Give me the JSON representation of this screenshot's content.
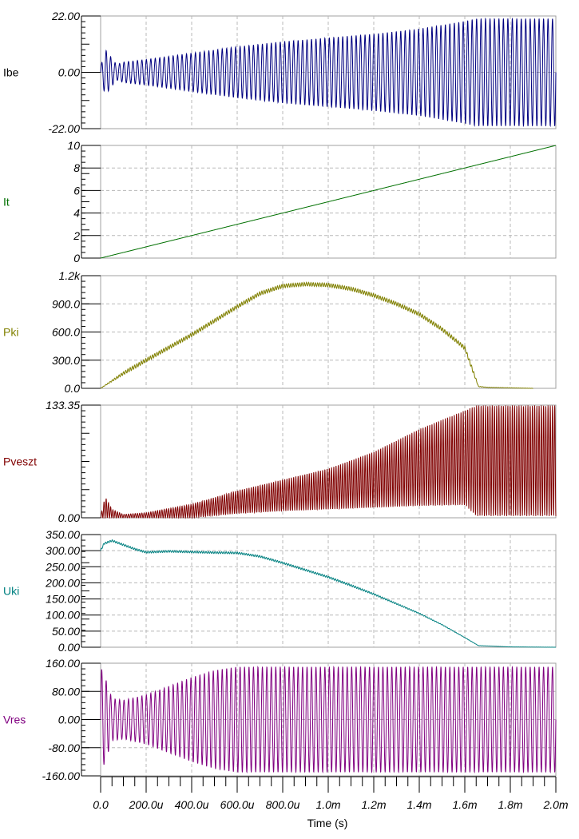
{
  "chart_data": {
    "type": "line",
    "xlabel": "Time (s)",
    "xlim": [
      0,
      0.002
    ],
    "x_ticks": [
      {
        "value": 0,
        "label": "0.0"
      },
      {
        "value": 0.0002,
        "label": "200.0u"
      },
      {
        "value": 0.0004,
        "label": "400.0u"
      },
      {
        "value": 0.0006,
        "label": "600.0u"
      },
      {
        "value": 0.0008,
        "label": "800.0u"
      },
      {
        "value": 0.001,
        "label": "1.0m"
      },
      {
        "value": 0.0012,
        "label": "1.2m"
      },
      {
        "value": 0.0014,
        "label": "1.4m"
      },
      {
        "value": 0.0016,
        "label": "1.6m"
      },
      {
        "value": 0.0018,
        "label": "1.8m"
      },
      {
        "value": 0.002,
        "label": "2.0m"
      }
    ],
    "grid": true,
    "panels": [
      {
        "name": "Ibe",
        "color": "#000000",
        "line_color": "#000080",
        "ylim": [
          -22,
          22
        ],
        "y_ticks": [
          {
            "value": 22,
            "label": "22.00"
          },
          {
            "value": 0,
            "label": "0.00"
          },
          {
            "value": -22,
            "label": "-22.00"
          }
        ],
        "kind": "oscillation",
        "envelope_t": [
          0,
          2e-05,
          7e-05,
          0.0001,
          0.0002,
          0.0004,
          0.0006,
          0.0008,
          0.001,
          0.0012,
          0.0014,
          0.0016,
          0.00165,
          0.002
        ],
        "envelope_amp": [
          2,
          9,
          3,
          4,
          5,
          7.5,
          10,
          12,
          13.5,
          15,
          17,
          20,
          21,
          21
        ],
        "offset": 0,
        "cycles": 102
      },
      {
        "name": "It",
        "color": "#007000",
        "line_color": "#007000",
        "ylim": [
          0,
          10
        ],
        "y_ticks": [
          {
            "value": 10,
            "label": "10"
          },
          {
            "value": 8,
            "label": "8"
          },
          {
            "value": 6,
            "label": "6"
          },
          {
            "value": 4,
            "label": "4"
          },
          {
            "value": 2,
            "label": "2"
          },
          {
            "value": 0,
            "label": "0"
          }
        ],
        "kind": "line",
        "x": [
          0,
          0.002
        ],
        "y": [
          0,
          10
        ]
      },
      {
        "name": "Pki",
        "color": "#808000",
        "line_color": "#808000",
        "ylim": [
          0,
          1200
        ],
        "y_ticks": [
          {
            "value": 1200,
            "label": "1.2k"
          },
          {
            "value": 900,
            "label": "900.0"
          },
          {
            "value": 600,
            "label": "600.0"
          },
          {
            "value": 300,
            "label": "300.0"
          },
          {
            "value": 0,
            "label": "0.0"
          }
        ],
        "kind": "line",
        "x": [
          0,
          0.0001,
          0.0002,
          0.0004,
          0.0006,
          0.0007,
          0.0008,
          0.0009,
          0.001,
          0.0011,
          0.0012,
          0.0013,
          0.0014,
          0.0015,
          0.0016,
          0.00166,
          0.0017,
          0.0018,
          0.0019
        ],
        "y": [
          0,
          160,
          300,
          570,
          870,
          1010,
          1090,
          1110,
          1100,
          1060,
          990,
          900,
          790,
          630,
          430,
          20,
          10,
          5,
          0
        ],
        "ripple": 20
      },
      {
        "name": "Pveszt",
        "color": "#800000",
        "line_color": "#800000",
        "ylim": [
          0,
          133.35
        ],
        "y_ticks": [
          {
            "value": 133.35,
            "label": "133.35"
          },
          {
            "value": 0,
            "label": "0.00"
          }
        ],
        "kind": "pulses",
        "envelope_t": [
          0,
          2e-05,
          5e-05,
          0.0001,
          0.0002,
          0.0004,
          0.0006,
          0.0008,
          0.001,
          0.0012,
          0.0014,
          0.0016,
          0.00165,
          0.002
        ],
        "envelope_peak": [
          2,
          25,
          10,
          4,
          6,
          16,
          32,
          45,
          58,
          78,
          105,
          127,
          133,
          133
        ],
        "envelope_low": [
          0,
          0,
          0,
          0,
          0,
          0,
          5,
          8,
          10,
          12,
          14,
          15,
          2,
          2
        ],
        "cycles": 204
      },
      {
        "name": "Uki",
        "color": "#008080",
        "line_color": "#008080",
        "ylim": [
          0,
          350
        ],
        "y_ticks": [
          {
            "value": 350,
            "label": "350.00"
          },
          {
            "value": 300,
            "label": "300.00"
          },
          {
            "value": 250,
            "label": "250.00"
          },
          {
            "value": 200,
            "label": "200.00"
          },
          {
            "value": 150,
            "label": "150.00"
          },
          {
            "value": 100,
            "label": "100.00"
          },
          {
            "value": 50,
            "label": "50.00"
          },
          {
            "value": 0,
            "label": "0.00"
          }
        ],
        "kind": "line",
        "x": [
          0,
          1.5e-05,
          5e-05,
          0.0001,
          0.00015,
          0.0002,
          0.0003,
          0.0004,
          0.0005,
          0.0006,
          0.0007,
          0.0008,
          0.0009,
          0.001,
          0.0011,
          0.0012,
          0.0013,
          0.0014,
          0.0015,
          0.0016,
          0.00166,
          0.0018,
          0.002
        ],
        "y": [
          300,
          322,
          331,
          318,
          305,
          295,
          298,
          296,
          294,
          293,
          282,
          262,
          240,
          218,
          192,
          165,
          135,
          105,
          70,
          30,
          5,
          1,
          0
        ],
        "ripple": 3
      },
      {
        "name": "Vres",
        "color": "#800080",
        "line_color": "#800080",
        "ylim": [
          -160,
          160
        ],
        "y_ticks": [
          {
            "value": 160,
            "label": "160.00"
          },
          {
            "value": 80,
            "label": "80.00"
          },
          {
            "value": 0,
            "label": "0.00"
          },
          {
            "value": -80,
            "label": "-80.00"
          },
          {
            "value": -160,
            "label": "-160.00"
          }
        ],
        "kind": "oscillation",
        "envelope_t": [
          0,
          2e-05,
          5e-05,
          0.0001,
          0.0002,
          0.0003,
          0.0004,
          0.0005,
          0.0006,
          0.002
        ],
        "envelope_amp": [
          150,
          120,
          60,
          55,
          70,
          95,
          120,
          140,
          150,
          150
        ],
        "offset": 0,
        "cycles": 102
      }
    ]
  }
}
